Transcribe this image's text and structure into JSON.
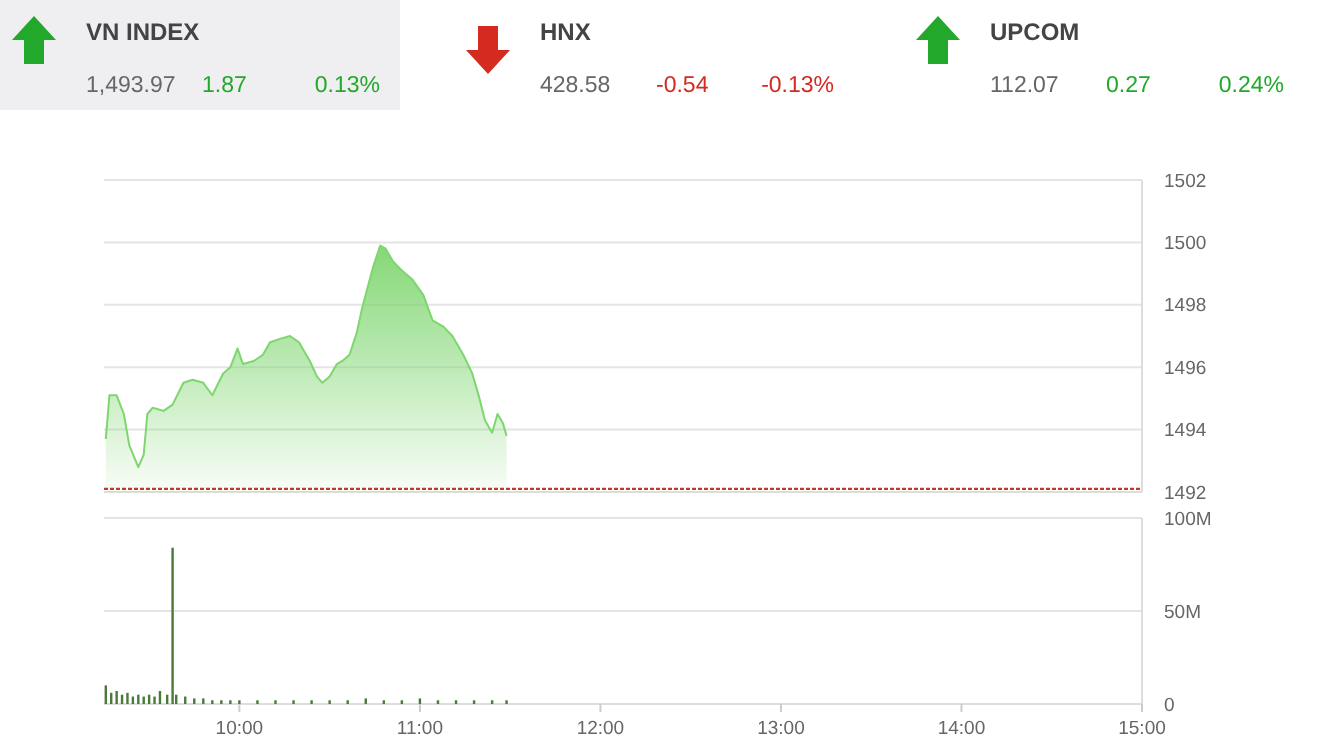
{
  "chart_data": [
    {
      "type": "other",
      "categories": [
        "VN INDEX",
        "HNX",
        "UPCOM"
      ],
      "colors": [
        "#22a82a",
        "#d42a20",
        "#22a82a"
      ],
      "annotations": [
        "1,493.97",
        "1.87",
        "0.13%",
        "428.58",
        "-0.54",
        "-0.13%",
        "112.07",
        "0.27",
        "0.24%"
      ]
    },
    {
      "type": "area",
      "tick_labels": "y",
      "grid": "y",
      "xlim": [
        9.25,
        15
      ],
      "ylim": [
        1492,
        1502
      ],
      "yticks": [
        1492,
        1494,
        1496,
        1498,
        1500,
        1502
      ],
      "ref_lines": [
        {
          "axis": "y",
          "value": 1492.1,
          "color": "#c0392b",
          "line_style": "dotted"
        }
      ],
      "series": [
        {
          "color": "#7ed66f",
          "x": [
            9.26,
            9.28,
            9.32,
            9.36,
            9.39,
            9.44,
            9.47,
            9.49,
            9.52,
            9.58,
            9.63,
            9.69,
            9.74,
            9.8,
            9.85,
            9.91,
            9.95,
            9.99,
            10.02,
            10.08,
            10.13,
            10.17,
            10.22,
            10.28,
            10.33,
            10.39,
            10.43,
            10.46,
            10.5,
            10.54,
            10.57,
            10.61,
            10.65,
            10.68,
            10.74,
            10.78,
            10.81,
            10.85,
            10.9,
            10.96,
            11.02,
            11.07,
            11.13,
            11.18,
            11.24,
            11.29,
            11.33,
            11.36,
            11.4,
            11.43,
            11.46,
            11.48
          ],
          "values": [
            1493.7,
            1495.1,
            1495.1,
            1494.5,
            1493.5,
            1492.8,
            1493.2,
            1494.5,
            1494.7,
            1494.6,
            1494.8,
            1495.5,
            1495.6,
            1495.5,
            1495.1,
            1495.8,
            1496.0,
            1496.6,
            1496.1,
            1496.2,
            1496.4,
            1496.8,
            1496.9,
            1497.0,
            1496.8,
            1496.2,
            1495.7,
            1495.5,
            1495.7,
            1496.1,
            1496.2,
            1496.4,
            1497.1,
            1497.9,
            1499.2,
            1499.9,
            1499.8,
            1499.4,
            1499.1,
            1498.8,
            1498.3,
            1497.5,
            1497.3,
            1497.0,
            1496.4,
            1495.8,
            1495.0,
            1494.3,
            1493.9,
            1494.5,
            1494.2,
            1493.8
          ]
        }
      ]
    },
    {
      "type": "bar",
      "grid": "y",
      "xlim": [
        9.25,
        15
      ],
      "xticks": [
        {
          "value": 10,
          "label": "10:00"
        },
        {
          "value": 11,
          "label": "11:00"
        },
        {
          "value": 12,
          "label": "12:00"
        },
        {
          "value": 13,
          "label": "13:00"
        },
        {
          "value": 14,
          "label": "14:00"
        },
        {
          "value": 15,
          "label": "15:00"
        }
      ],
      "ylim": [
        0,
        100
      ],
      "yticks": [
        {
          "value": 0,
          "label": "0"
        },
        {
          "value": 50,
          "label": "50M"
        },
        {
          "value": 100,
          "label": "100M"
        }
      ],
      "series": [
        {
          "color": "#4a7a3a",
          "x": [
            9.26,
            9.29,
            9.32,
            9.35,
            9.38,
            9.41,
            9.44,
            9.47,
            9.5,
            9.53,
            9.56,
            9.6,
            9.63,
            9.65,
            9.7,
            9.75,
            9.8,
            9.85,
            9.9,
            9.95,
            10,
            10.1,
            10.2,
            10.3,
            10.4,
            10.5,
            10.6,
            10.7,
            10.8,
            10.9,
            11,
            11.1,
            11.2,
            11.3,
            11.4,
            11.48
          ],
          "values": [
            10,
            6,
            7,
            5,
            6,
            4,
            5,
            4,
            5,
            4,
            7,
            5,
            84,
            5,
            4,
            3,
            3,
            2,
            2,
            2,
            2,
            2,
            2,
            2,
            2,
            2,
            2,
            3,
            2,
            2,
            3,
            2,
            2,
            2,
            2,
            2
          ]
        }
      ]
    }
  ]
}
